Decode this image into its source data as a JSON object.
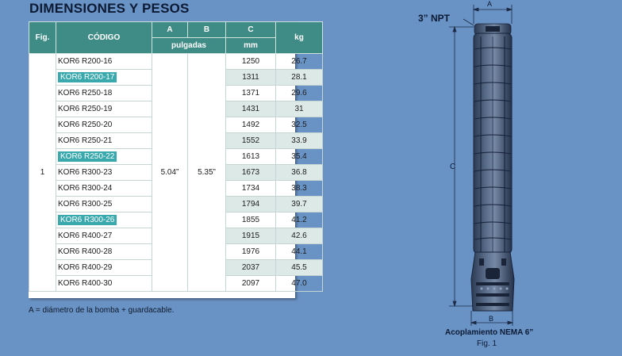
{
  "title": "DIMENSIONES Y PESOS",
  "table": {
    "headers": {
      "fig": "Fig.",
      "codigo": "CÓDIGO",
      "a": "A",
      "b": "B",
      "c": "C",
      "kg": "kg",
      "pulgadas": "pulgadas",
      "mm": "mm"
    },
    "fig_value": "1",
    "a_value": "5.04”",
    "b_value": "5.35”",
    "rows": [
      {
        "code": "KOR6 R200-16",
        "c": "1250",
        "kg": "26.7",
        "highlight": false
      },
      {
        "code": "KOR6 R200-17",
        "c": "1311",
        "kg": "28.1",
        "highlight": true
      },
      {
        "code": "KOR6 R250-18",
        "c": "1371",
        "kg": "29.6",
        "highlight": false
      },
      {
        "code": "KOR6 R250-19",
        "c": "1431",
        "kg": "31",
        "highlight": false
      },
      {
        "code": "KOR6 R250-20",
        "c": "1492",
        "kg": "32.5",
        "highlight": false
      },
      {
        "code": "KOR6 R250-21",
        "c": "1552",
        "kg": "33.9",
        "highlight": false
      },
      {
        "code": "KOR6 R250-22",
        "c": "1613",
        "kg": "35.4",
        "highlight": true
      },
      {
        "code": "KOR6 R300-23",
        "c": "1673",
        "kg": "36.8",
        "highlight": false
      },
      {
        "code": "KOR6 R300-24",
        "c": "1734",
        "kg": "38.3",
        "highlight": false
      },
      {
        "code": "KOR6 R300-25",
        "c": "1794",
        "kg": "39.7",
        "highlight": false
      },
      {
        "code": "KOR6 R300-26",
        "c": "1855",
        "kg": "41.2",
        "highlight": true
      },
      {
        "code": "KOR6 R400-27",
        "c": "1915",
        "kg": "42.6",
        "highlight": false
      },
      {
        "code": "KOR6 R400-28",
        "c": "1976",
        "kg": "44.1",
        "highlight": false
      },
      {
        "code": "KOR6 R400-29",
        "c": "2037",
        "kg": "45.5",
        "highlight": false
      },
      {
        "code": "KOR6 R400-30",
        "c": "2097",
        "kg": "47.0",
        "highlight": false
      }
    ]
  },
  "footnote": "A = diámetro de la bomba + guardacable.",
  "figure": {
    "npt_label": "3” NPT",
    "dim_a": "A",
    "dim_b": "B",
    "dim_c": "C",
    "caption": "Acoplamiento NEMA 6”",
    "fig_label": "Fig. 1"
  }
}
